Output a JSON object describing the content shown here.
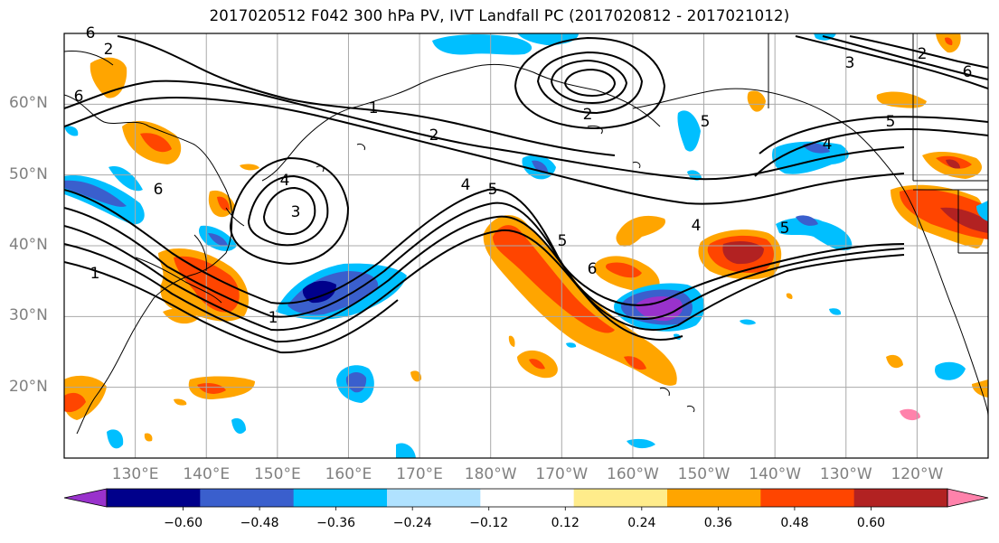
{
  "title": "2017020512 F042 300 hPa PV, IVT Landfall PC (2017020812 - 2017021012)",
  "latitude_labels": [
    "60°N",
    "50°N",
    "40°N",
    "30°N",
    "20°N"
  ],
  "longitude_labels": [
    "130°E",
    "140°E",
    "150°E",
    "160°E",
    "170°E",
    "180°W",
    "170°W",
    "160°W",
    "150°W",
    "140°W",
    "130°W",
    "120°W"
  ],
  "map": {
    "projection": "equirectangular",
    "lon_range": [
      120,
      250
    ],
    "lat_range": [
      10,
      70
    ],
    "grid": true,
    "pv_contour_labels": [
      "6",
      "1",
      "2",
      "6",
      "5",
      "4",
      "3",
      "4",
      "5",
      "1",
      "2",
      "5",
      "6",
      "6",
      "4",
      "5",
      "2",
      "1",
      "3",
      "2",
      "4",
      "5",
      "6"
    ]
  },
  "colorbar": {
    "orientation": "horizontal",
    "extend": "both",
    "tick_labels": [
      "−0.60",
      "−0.48",
      "−0.36",
      "−0.24",
      "−0.12",
      "0.12",
      "0.24",
      "0.36",
      "0.48",
      "0.60"
    ],
    "colors": [
      "#9932cc",
      "#00008b",
      "#3a5fcd",
      "#00bfff",
      "#b0e2ff",
      "#ffffff",
      "#ffec8b",
      "#ffa500",
      "#ff4500",
      "#b22222",
      "#ff82ab"
    ]
  }
}
